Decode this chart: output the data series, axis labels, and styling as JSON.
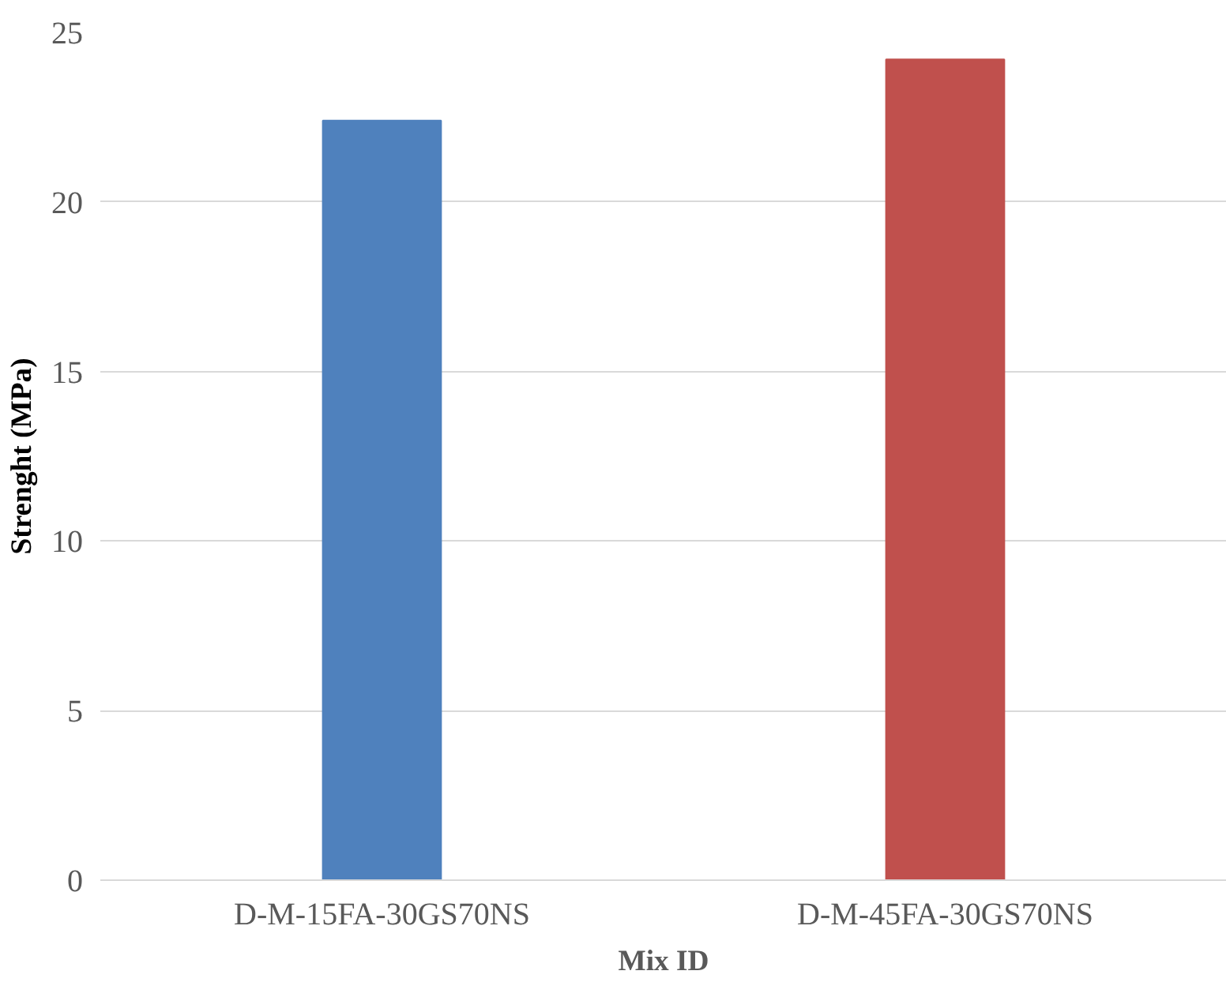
{
  "chart_data": {
    "type": "bar",
    "xlabel": "Mix ID",
    "ylabel": "Strenght (MPa)",
    "categories": [
      "D-M-15FA-30GS70NS",
      "D-M-45FA-30GS70NS"
    ],
    "values": [
      22.4,
      24.2
    ],
    "colors": [
      "#4f81bd",
      "#c0504d"
    ],
    "ylim": [
      0,
      25
    ],
    "yticks": [
      0,
      5,
      10,
      15,
      20,
      25
    ],
    "grid": "y"
  }
}
